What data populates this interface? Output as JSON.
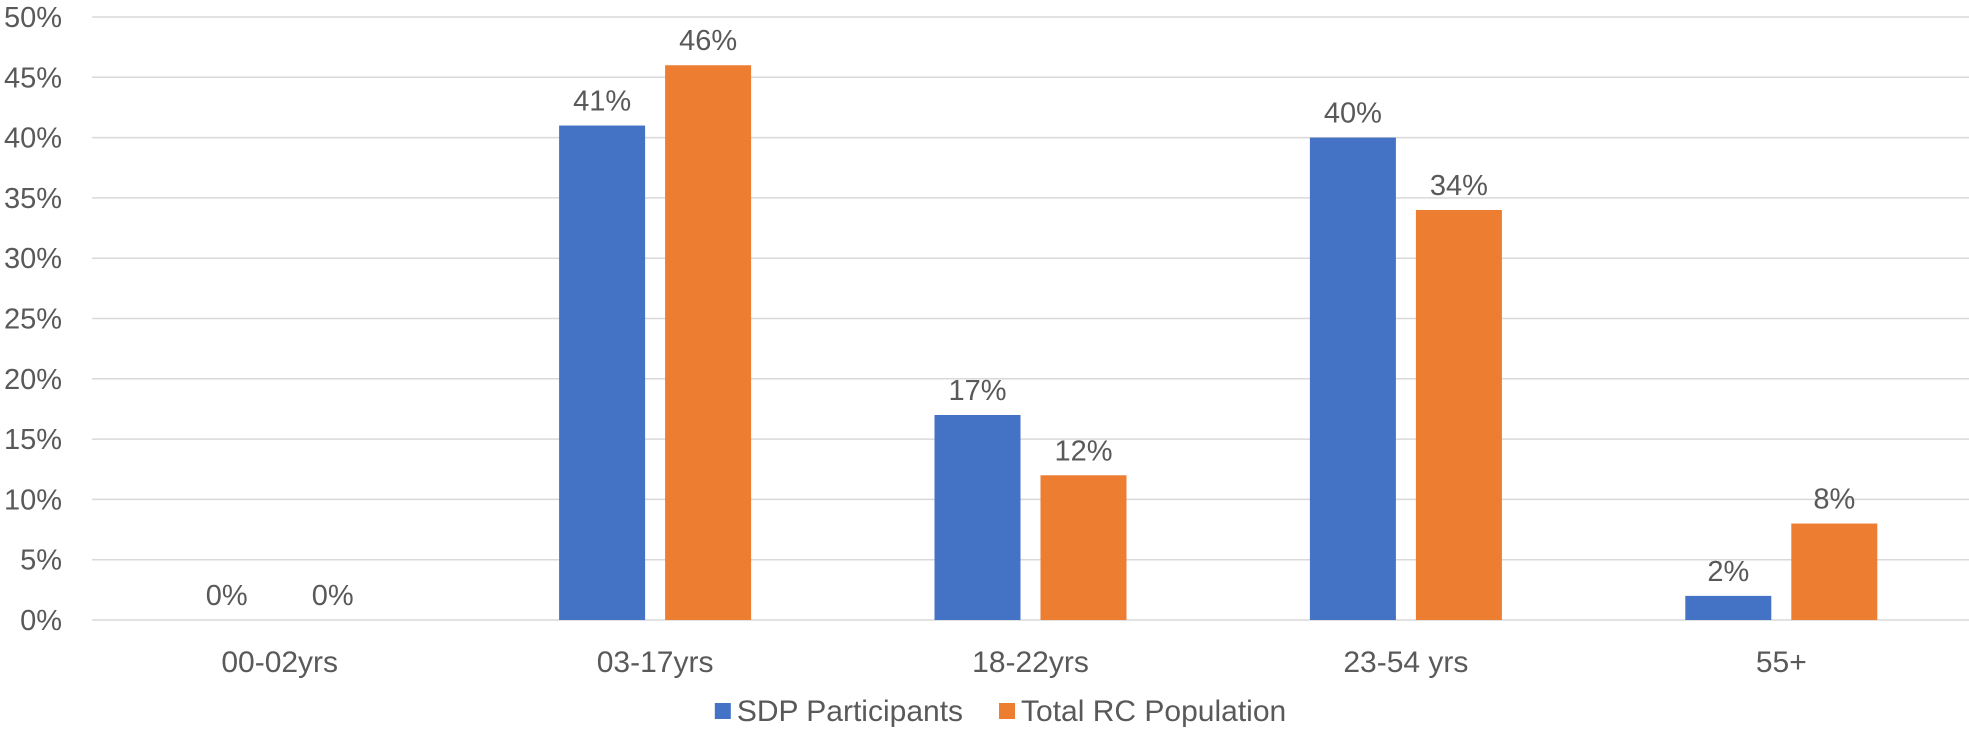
{
  "chart_data": {
    "type": "bar",
    "title": "",
    "xlabel": "",
    "ylabel": "",
    "categories": [
      "00-02yrs",
      "03-17yrs",
      "18-22yrs",
      "23-54 yrs",
      "55+"
    ],
    "series": [
      {
        "name": "SDP Participants",
        "color": "#4472c4",
        "values": [
          0,
          41,
          17,
          40,
          2
        ],
        "labels": [
          "0%",
          "41%",
          "17%",
          "40%",
          "2%"
        ]
      },
      {
        "name": "Total RC Population",
        "color": "#ed7d31",
        "values": [
          0,
          46,
          12,
          34,
          8
        ],
        "labels": [
          "0%",
          "46%",
          "12%",
          "34%",
          "8%"
        ]
      }
    ],
    "ylim": [
      0,
      50
    ],
    "yticks": [
      0,
      5,
      10,
      15,
      20,
      25,
      30,
      35,
      40,
      45,
      50
    ],
    "ytick_labels": [
      "0%",
      "5%",
      "10%",
      "15%",
      "20%",
      "25%",
      "30%",
      "35%",
      "40%",
      "45%",
      "50%"
    ],
    "grid": true,
    "legend_position": "bottom-center"
  }
}
